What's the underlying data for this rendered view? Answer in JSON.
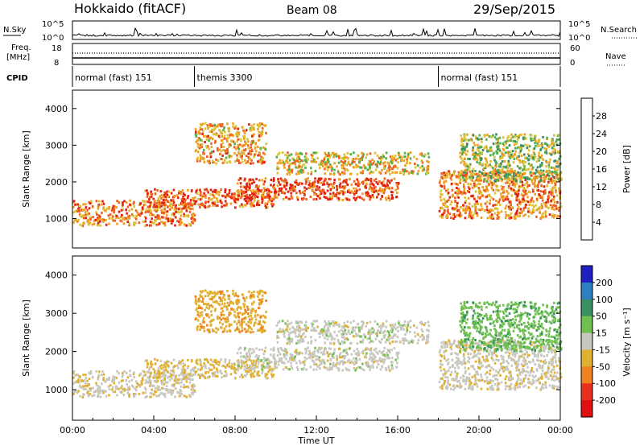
{
  "header": {
    "site": "Hokkaido (fitACF)",
    "beam": "Beam 08",
    "date": "29/Sep/2015"
  },
  "strip_labels": {
    "nsky": "N.Sky",
    "nsky_ticks": [
      "10^5",
      "10^0"
    ],
    "nsearch": "N.Search",
    "nsearch_ticks": [
      "10^5",
      "10^0"
    ],
    "freq_line1": "Freq.",
    "freq_line2": "[MHz]",
    "freq_ticks": [
      "18",
      "8"
    ],
    "nave": "Nave",
    "nave_ticks": [
      "60",
      "0"
    ],
    "cpid": "CPID"
  },
  "cpid_segments": [
    {
      "label": "normal (fast) 151",
      "start": 0
    },
    {
      "label": "themis 3300",
      "start": 6
    },
    {
      "label": "normal (fast) 151",
      "start": 18
    }
  ],
  "x_ticks": [
    "00:00",
    "04:00",
    "08:00",
    "12:00",
    "16:00",
    "20:00",
    "00:00"
  ],
  "x_label": "Time UT",
  "y_ticks": [
    "1000",
    "2000",
    "3000",
    "4000"
  ],
  "y_label": "Slant Range [km]",
  "power_scale": {
    "label": "Power [dB]",
    "ticks": [
      "4",
      "8",
      "12",
      "16",
      "20",
      "24",
      "28"
    ],
    "colors": [
      "#1010d8",
      "#2d5fb0",
      "#3a8a6a",
      "#4fb04f",
      "#d9c43a",
      "#f0a020",
      "#f06020",
      "#e02010"
    ]
  },
  "velocity_scale": {
    "label": "Velocity [m s⁻¹]",
    "ticks": [
      "200",
      "100",
      "50",
      "15",
      "-15",
      "-50",
      "-100",
      "-200"
    ],
    "colors": [
      "#2020c0",
      "#2e7fbf",
      "#3a9060",
      "#6fc050",
      "#c8c8c0",
      "#e0b030",
      "#f08020",
      "#e83020",
      "#e01010"
    ]
  },
  "chart_data": {
    "type": "heatmap",
    "title": "Hokkaido (fitACF) Beam 08 29/Sep/2015",
    "xlabel": "Time UT",
    "ylabel": "Slant Range [km]",
    "xlim": [
      0,
      24
    ],
    "ylim": [
      200,
      4500
    ],
    "echo_bands": [
      {
        "t0": 0.0,
        "t1": 6.0,
        "r0": 800,
        "r1": 1500,
        "power": 24,
        "velocity": -10
      },
      {
        "t0": 3.5,
        "t1": 10.0,
        "r0": 1300,
        "r1": 1800,
        "power": 26,
        "velocity": -20
      },
      {
        "t0": 6.0,
        "t1": 9.5,
        "r0": 2500,
        "r1": 3600,
        "power": 22,
        "velocity": -40
      },
      {
        "t0": 8.0,
        "t1": 16.0,
        "r0": 1500,
        "r1": 2100,
        "power": 28,
        "velocity": 0
      },
      {
        "t0": 10.0,
        "t1": 17.5,
        "r0": 2200,
        "r1": 2800,
        "power": 20,
        "velocity": 0
      },
      {
        "t0": 18.0,
        "t1": 24.0,
        "r0": 1000,
        "r1": 2300,
        "power": 24,
        "velocity": -5
      },
      {
        "t0": 19.0,
        "t1": 24.0,
        "r0": 2000,
        "r1": 3300,
        "power": 16,
        "velocity": 40
      }
    ]
  }
}
